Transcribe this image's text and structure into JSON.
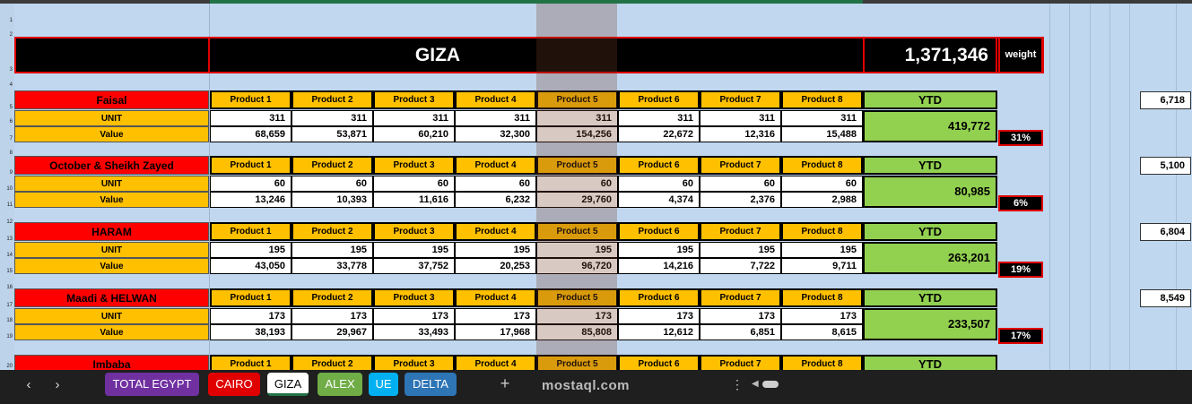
{
  "title": {
    "region": "GIZA",
    "total": "1,371,346",
    "weight_label": "weight"
  },
  "labels": {
    "unit": "UNIT",
    "value": "Value",
    "ytd": "YTD"
  },
  "products": [
    "Product 1",
    "Product 2",
    "Product 3",
    "Product 4",
    "Product 5",
    "Product 6",
    "Product 7",
    "Product 8"
  ],
  "regions": [
    {
      "name": "Faisal",
      "units": [
        "311",
        "311",
        "311",
        "311",
        "311",
        "311",
        "311",
        "311"
      ],
      "values": [
        "68,659",
        "53,871",
        "60,210",
        "32,300",
        "154,256",
        "22,672",
        "12,316",
        "15,488"
      ],
      "ytd": "419,772",
      "pct": "31%",
      "side": "6,718"
    },
    {
      "name": "October & Sheikh Zayed",
      "units": [
        "60",
        "60",
        "60",
        "60",
        "60",
        "60",
        "60",
        "60"
      ],
      "values": [
        "13,246",
        "10,393",
        "11,616",
        "6,232",
        "29,760",
        "4,374",
        "2,376",
        "2,988"
      ],
      "ytd": "80,985",
      "pct": "6%",
      "side": "5,100"
    },
    {
      "name": "HARAM",
      "units": [
        "195",
        "195",
        "195",
        "195",
        "195",
        "195",
        "195",
        "195"
      ],
      "values": [
        "43,050",
        "33,778",
        "37,752",
        "20,253",
        "96,720",
        "14,216",
        "7,722",
        "9,711"
      ],
      "ytd": "263,201",
      "pct": "19%",
      "side": "6,804"
    },
    {
      "name": "Maadi  & HELWAN",
      "units": [
        "173",
        "173",
        "173",
        "173",
        "173",
        "173",
        "173",
        "173"
      ],
      "values": [
        "38,193",
        "29,967",
        "33,493",
        "17,968",
        "85,808",
        "12,612",
        "6,851",
        "8,615"
      ],
      "ytd": "233,507",
      "pct": "17%",
      "side": "8,549"
    },
    {
      "name": "Imbaba",
      "units": [],
      "values": [],
      "ytd": "",
      "pct": "",
      "side": ""
    }
  ],
  "sheet_tabs": [
    {
      "label": "TOTAL  EGYPT",
      "color": "#7030a0"
    },
    {
      "label": "CAIRO",
      "color": "#e00000"
    },
    {
      "label": "GIZA",
      "color": "#ffffff"
    },
    {
      "label": "ALEX",
      "color": "#70ad47"
    },
    {
      "label": "UE",
      "color": "#00b0f0"
    },
    {
      "label": "DELTA",
      "color": "#2e75b6"
    }
  ],
  "row_numbers": [
    "1",
    "2",
    "3",
    "4",
    "5",
    "6",
    "7",
    "8",
    "9",
    "10",
    "11",
    "12",
    "13",
    "14",
    "15",
    "16",
    "17",
    "18",
    "19",
    "20"
  ],
  "icons": {
    "prev": "chevron-left-icon",
    "next": "chevron-right-icon",
    "add": "plus-icon",
    "more": "ellipsis-icon"
  },
  "watermark": "mostaql.com"
}
